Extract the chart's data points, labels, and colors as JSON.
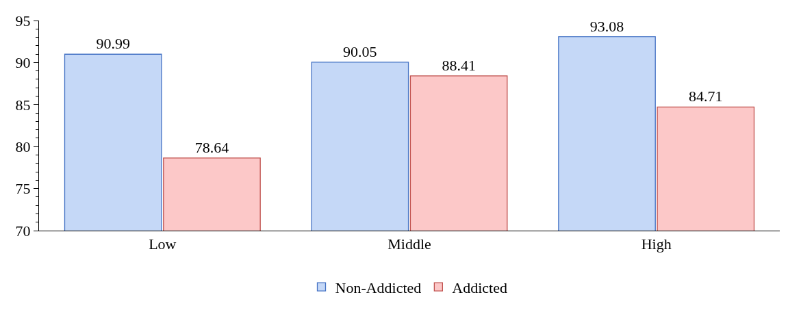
{
  "chart_data": {
    "type": "bar",
    "categories": [
      "Low",
      "Middle",
      "High"
    ],
    "series": [
      {
        "name": "Non-Addicted",
        "color": "#c5d8f7",
        "values": [
          90.99,
          90.05,
          93.08
        ]
      },
      {
        "name": "Addicted",
        "color": "#fcc8c8",
        "values": [
          78.64,
          88.41,
          84.71
        ]
      }
    ],
    "ylim": [
      70,
      95
    ],
    "yticks": [
      70,
      75,
      80,
      85,
      90,
      95
    ],
    "grid": false,
    "legend": "bottom",
    "data_labels": true
  }
}
